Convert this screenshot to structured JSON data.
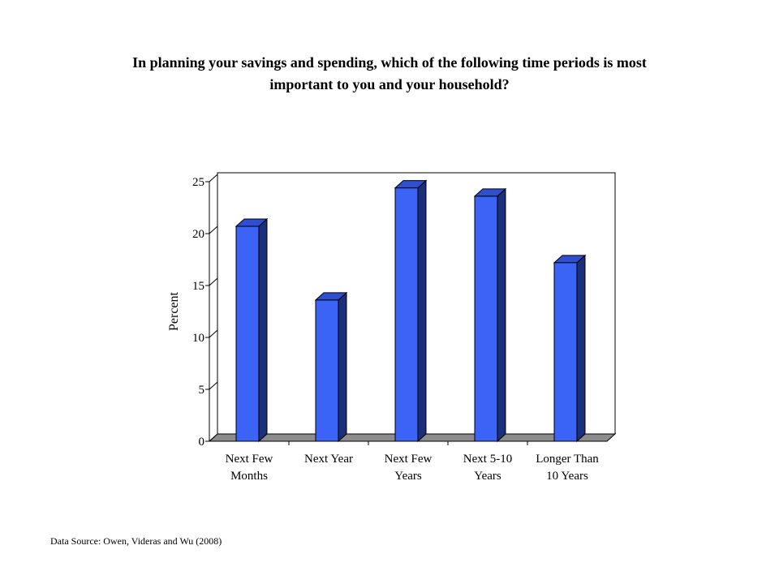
{
  "chart_data": {
    "type": "bar",
    "title_lines": [
      "In planning your savings and spending, which of the following time periods is most",
      "important to you and your household?"
    ],
    "ylabel": "Percent",
    "xlabel": "",
    "ylim": [
      0,
      25
    ],
    "yticks": [
      0,
      5,
      10,
      15,
      20,
      25
    ],
    "categories": [
      [
        "Next Few",
        "Months"
      ],
      [
        "Next Year"
      ],
      [
        "Next Few",
        "Years"
      ],
      [
        "Next 5-10",
        "Years"
      ],
      [
        "Longer Than",
        "10 Years"
      ]
    ],
    "values": [
      20.7,
      13.6,
      24.4,
      23.6,
      17.2
    ],
    "grid": false,
    "legend": false,
    "colors": {
      "bar_front": "#3b63f5",
      "bar_side": "#1c2f7a",
      "bar_top": "#2e4fd0",
      "floor": "#8c8c8c"
    }
  },
  "source_note": "Data Source: Owen, Videras and Wu (2008)"
}
